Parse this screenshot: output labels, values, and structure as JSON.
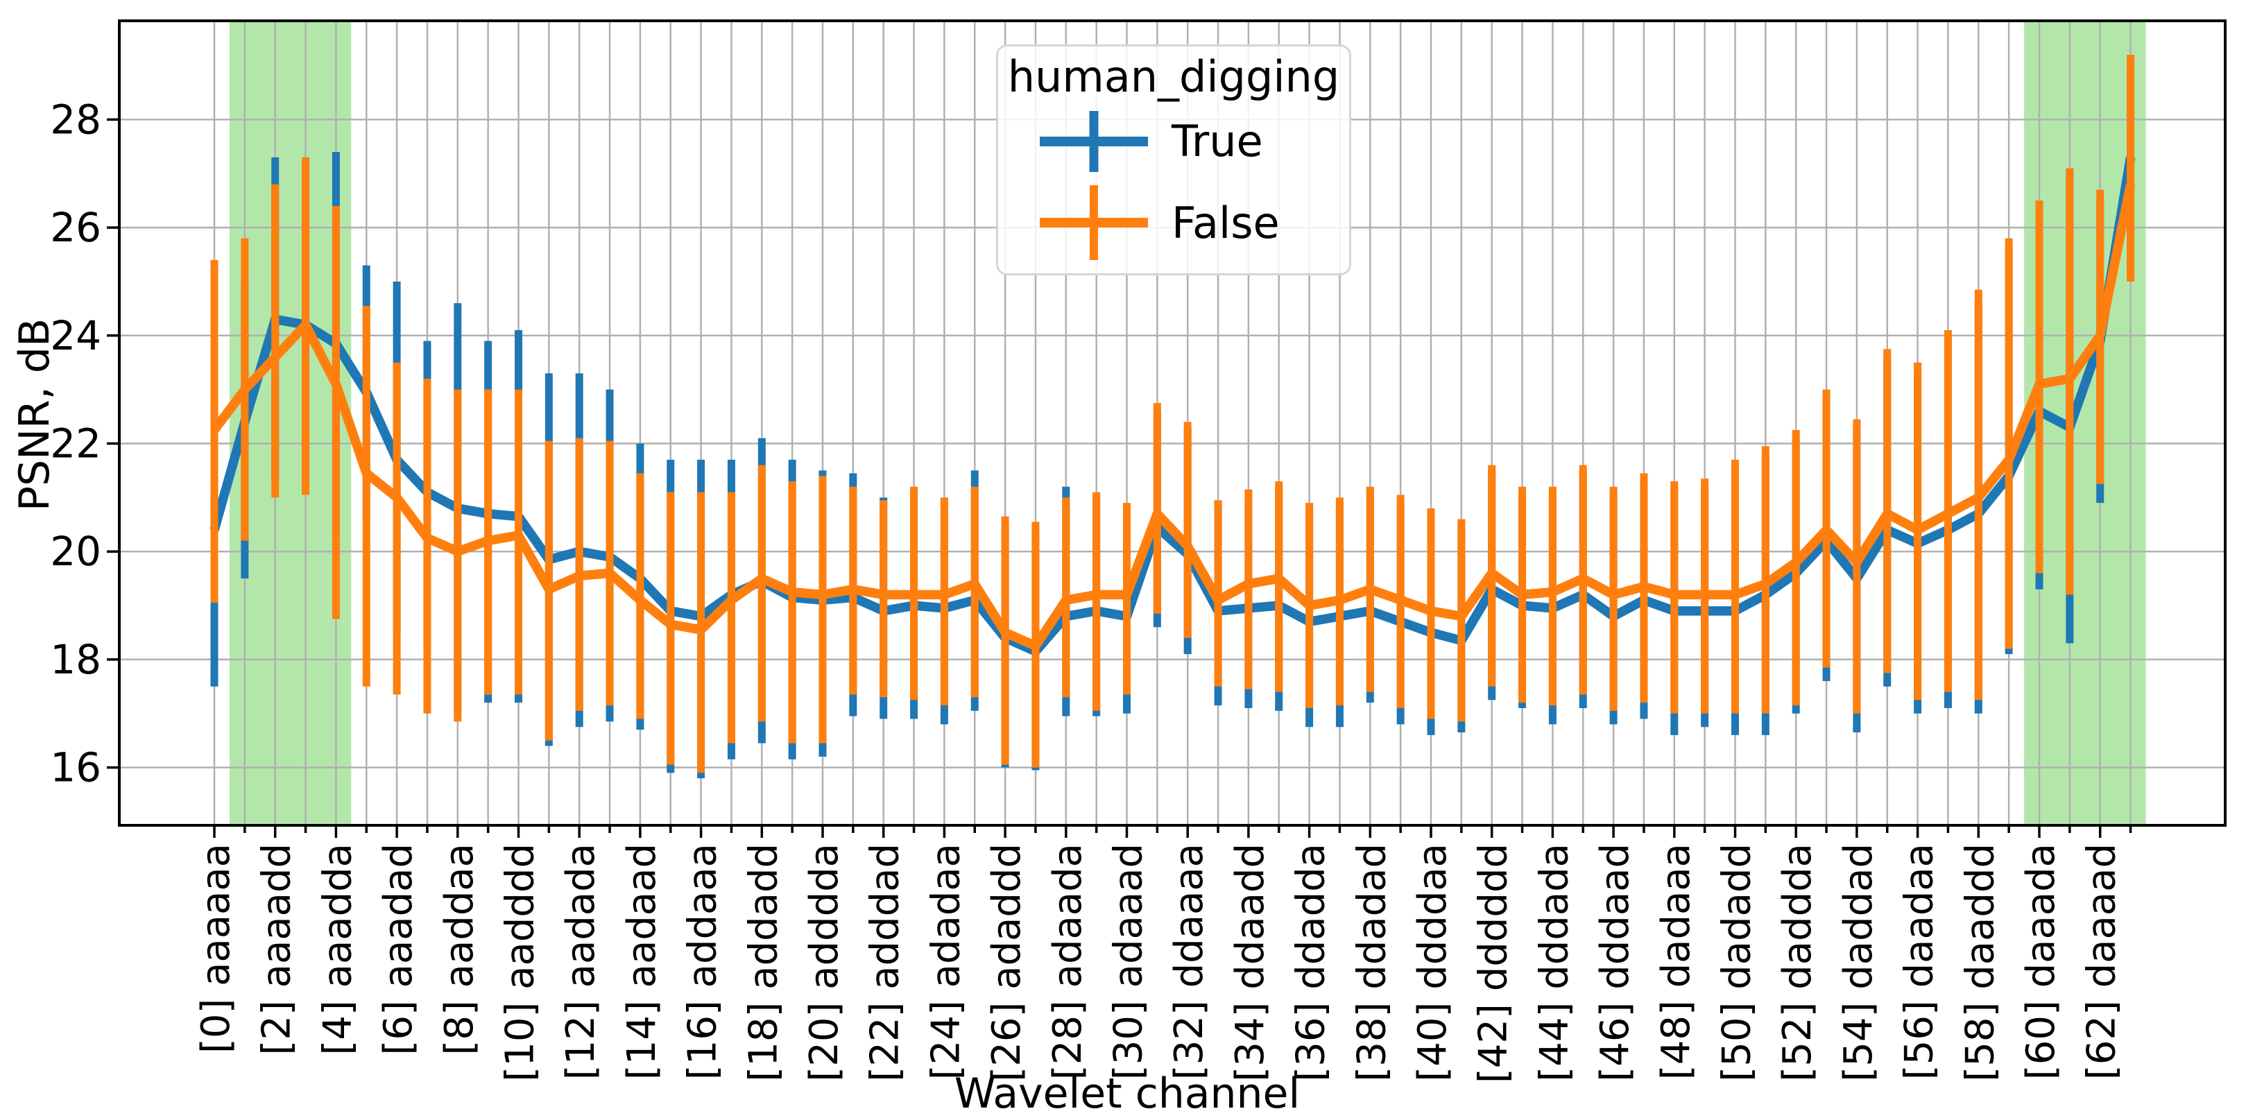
{
  "chart_data": {
    "type": "line",
    "title": "",
    "xlabel": "Wavelet channel",
    "ylabel": "PSNR, dB",
    "legend_title": "human_digging",
    "legend_position": "upper center",
    "grid": "on",
    "grid_color": "#b0b0b0",
    "band_color": "#b3e7aa",
    "ylim": [
      14.93,
      29.83
    ],
    "yticks": [
      16,
      18,
      20,
      22,
      24,
      26,
      28
    ],
    "x": [
      0,
      1,
      2,
      3,
      4,
      5,
      6,
      7,
      8,
      9,
      10,
      11,
      12,
      13,
      14,
      15,
      16,
      17,
      18,
      19,
      20,
      21,
      22,
      23,
      24,
      25,
      26,
      27,
      28,
      29,
      30,
      31,
      32,
      33,
      34,
      35,
      36,
      37,
      38,
      39,
      40,
      41,
      42,
      43,
      44,
      45,
      46,
      47,
      48,
      49,
      50,
      51,
      52,
      53,
      54,
      55,
      56,
      57,
      58,
      59,
      60,
      61,
      62,
      63
    ],
    "xtick_step": 2,
    "xtick_labels": [
      "[0] aaaaaa",
      "[2] aaaadd",
      "[4] aaadda",
      "[6] aaadad",
      "[8] aaddaa",
      "[10] aadddd",
      "[12] aadada",
      "[14] aadaad",
      "[16] addaaa",
      "[18] addadd",
      "[20] adddda",
      "[22] adddad",
      "[24] adadaa",
      "[26] adaddd",
      "[28] adaada",
      "[30] adaaad",
      "[32] ddaaaa",
      "[34] ddaadd",
      "[36] ddadda",
      "[38] ddadad",
      "[40] ddddaa",
      "[42] dddddd",
      "[44] dddada",
      "[46] dddaad",
      "[48] dadaaa",
      "[50] dadadd",
      "[52] daddda",
      "[54] daddad",
      "[56] daadaa",
      "[58] daaddd",
      "[60] daaada",
      "[62] daaaad"
    ],
    "highlight_bands": [
      {
        "from": 0.5,
        "to": 4.5
      },
      {
        "from": 59.5,
        "to": 63.5
      }
    ],
    "series": [
      {
        "name": "True",
        "color": "#1f77b4",
        "values": [
          20.4,
          22.4,
          24.3,
          24.2,
          23.85,
          22.95,
          21.7,
          21.1,
          20.8,
          20.7,
          20.65,
          19.85,
          20.0,
          19.9,
          19.5,
          18.9,
          18.8,
          19.2,
          19.45,
          19.15,
          19.1,
          19.15,
          18.9,
          19.0,
          18.95,
          19.1,
          18.4,
          18.15,
          18.8,
          18.9,
          18.8,
          20.45,
          19.95,
          18.9,
          18.95,
          19.0,
          18.7,
          18.8,
          18.9,
          18.7,
          18.5,
          18.35,
          19.3,
          19.0,
          18.95,
          19.2,
          18.8,
          19.1,
          18.9,
          18.9,
          18.9,
          19.2,
          19.6,
          20.2,
          19.5,
          20.4,
          20.15,
          20.4,
          20.7,
          21.4,
          22.6,
          22.3,
          23.9,
          27.3
        ],
        "err_low": [
          17.5,
          19.5,
          21.3,
          21.3,
          20.3,
          20.6,
          18.5,
          18.3,
          17.0,
          17.2,
          17.2,
          16.4,
          16.75,
          16.85,
          16.7,
          15.9,
          15.8,
          16.15,
          16.45,
          16.15,
          16.2,
          16.95,
          16.9,
          16.9,
          16.8,
          17.05,
          16.0,
          15.95,
          16.95,
          16.95,
          17.0,
          18.6,
          18.1,
          17.15,
          17.1,
          17.05,
          16.75,
          16.75,
          17.2,
          16.8,
          16.6,
          16.65,
          17.25,
          17.1,
          16.8,
          17.1,
          16.8,
          16.9,
          16.6,
          16.75,
          16.6,
          16.6,
          17.0,
          17.6,
          16.65,
          17.5,
          17.0,
          17.1,
          17.0,
          18.1,
          19.3,
          18.3,
          20.9,
          25.2
        ],
        "err_high": [
          23.3,
          25.0,
          27.3,
          27.2,
          27.4,
          25.3,
          25.0,
          23.9,
          24.6,
          23.9,
          24.1,
          23.3,
          23.3,
          23.0,
          22.0,
          21.7,
          21.7,
          21.7,
          22.1,
          21.7,
          21.5,
          21.45,
          21.0,
          21.1,
          20.9,
          21.5,
          20.5,
          20.4,
          21.2,
          21.0,
          20.8,
          22.6,
          22.3,
          20.9,
          21.0,
          21.2,
          20.8,
          20.9,
          21.1,
          20.9,
          20.7,
          20.5,
          21.5,
          21.1,
          21.1,
          21.5,
          21.1,
          21.3,
          21.2,
          21.2,
          21.5,
          21.8,
          22.1,
          22.9,
          22.3,
          23.6,
          23.3,
          23.9,
          24.6,
          25.6,
          26.3,
          27.0,
          26.5,
          28.9
        ]
      },
      {
        "name": "False",
        "color": "#ff7f0e",
        "values": [
          22.25,
          23.0,
          23.6,
          24.2,
          23.1,
          21.45,
          21.0,
          20.25,
          20.0,
          20.2,
          20.3,
          19.3,
          19.55,
          19.6,
          19.1,
          18.65,
          18.55,
          19.1,
          19.5,
          19.25,
          19.2,
          19.3,
          19.2,
          19.2,
          19.2,
          19.4,
          18.5,
          18.25,
          19.1,
          19.2,
          19.2,
          20.7,
          20.1,
          19.1,
          19.4,
          19.5,
          19.0,
          19.1,
          19.3,
          19.1,
          18.9,
          18.8,
          19.6,
          19.2,
          19.25,
          19.5,
          19.2,
          19.35,
          19.2,
          19.2,
          19.2,
          19.4,
          19.8,
          20.4,
          19.8,
          20.7,
          20.4,
          20.7,
          21.0,
          21.7,
          23.1,
          23.2,
          24.0,
          26.8
        ],
        "err_low": [
          19.05,
          20.2,
          21.0,
          21.05,
          18.75,
          17.5,
          17.35,
          17.0,
          16.85,
          17.35,
          17.35,
          16.5,
          17.05,
          17.15,
          16.9,
          16.05,
          15.9,
          16.45,
          16.85,
          16.45,
          16.45,
          17.35,
          17.3,
          17.25,
          17.15,
          17.3,
          16.05,
          16.0,
          17.3,
          17.05,
          17.35,
          18.85,
          18.4,
          17.5,
          17.45,
          17.4,
          17.1,
          17.15,
          17.4,
          17.1,
          16.9,
          16.85,
          17.5,
          17.2,
          17.15,
          17.35,
          17.05,
          17.2,
          17.0,
          17.0,
          17.0,
          17.0,
          17.15,
          17.85,
          17.0,
          17.75,
          17.25,
          17.4,
          17.25,
          18.2,
          19.6,
          19.2,
          21.25,
          25.0
        ],
        "err_high": [
          25.4,
          25.8,
          26.8,
          27.3,
          26.4,
          24.55,
          23.5,
          23.2,
          23.0,
          23.0,
          23.0,
          22.05,
          22.1,
          22.05,
          21.45,
          21.1,
          21.1,
          21.1,
          21.6,
          21.3,
          21.4,
          21.2,
          20.95,
          21.2,
          21.0,
          21.2,
          20.65,
          20.55,
          21.0,
          21.1,
          20.9,
          22.75,
          22.4,
          20.95,
          21.15,
          21.3,
          20.9,
          21.0,
          21.2,
          21.05,
          20.8,
          20.6,
          21.6,
          21.2,
          21.2,
          21.6,
          21.2,
          21.45,
          21.3,
          21.35,
          21.7,
          21.95,
          22.25,
          23.0,
          22.45,
          23.75,
          23.5,
          24.1,
          24.85,
          25.8,
          26.5,
          27.1,
          26.7,
          29.2
        ]
      }
    ]
  }
}
